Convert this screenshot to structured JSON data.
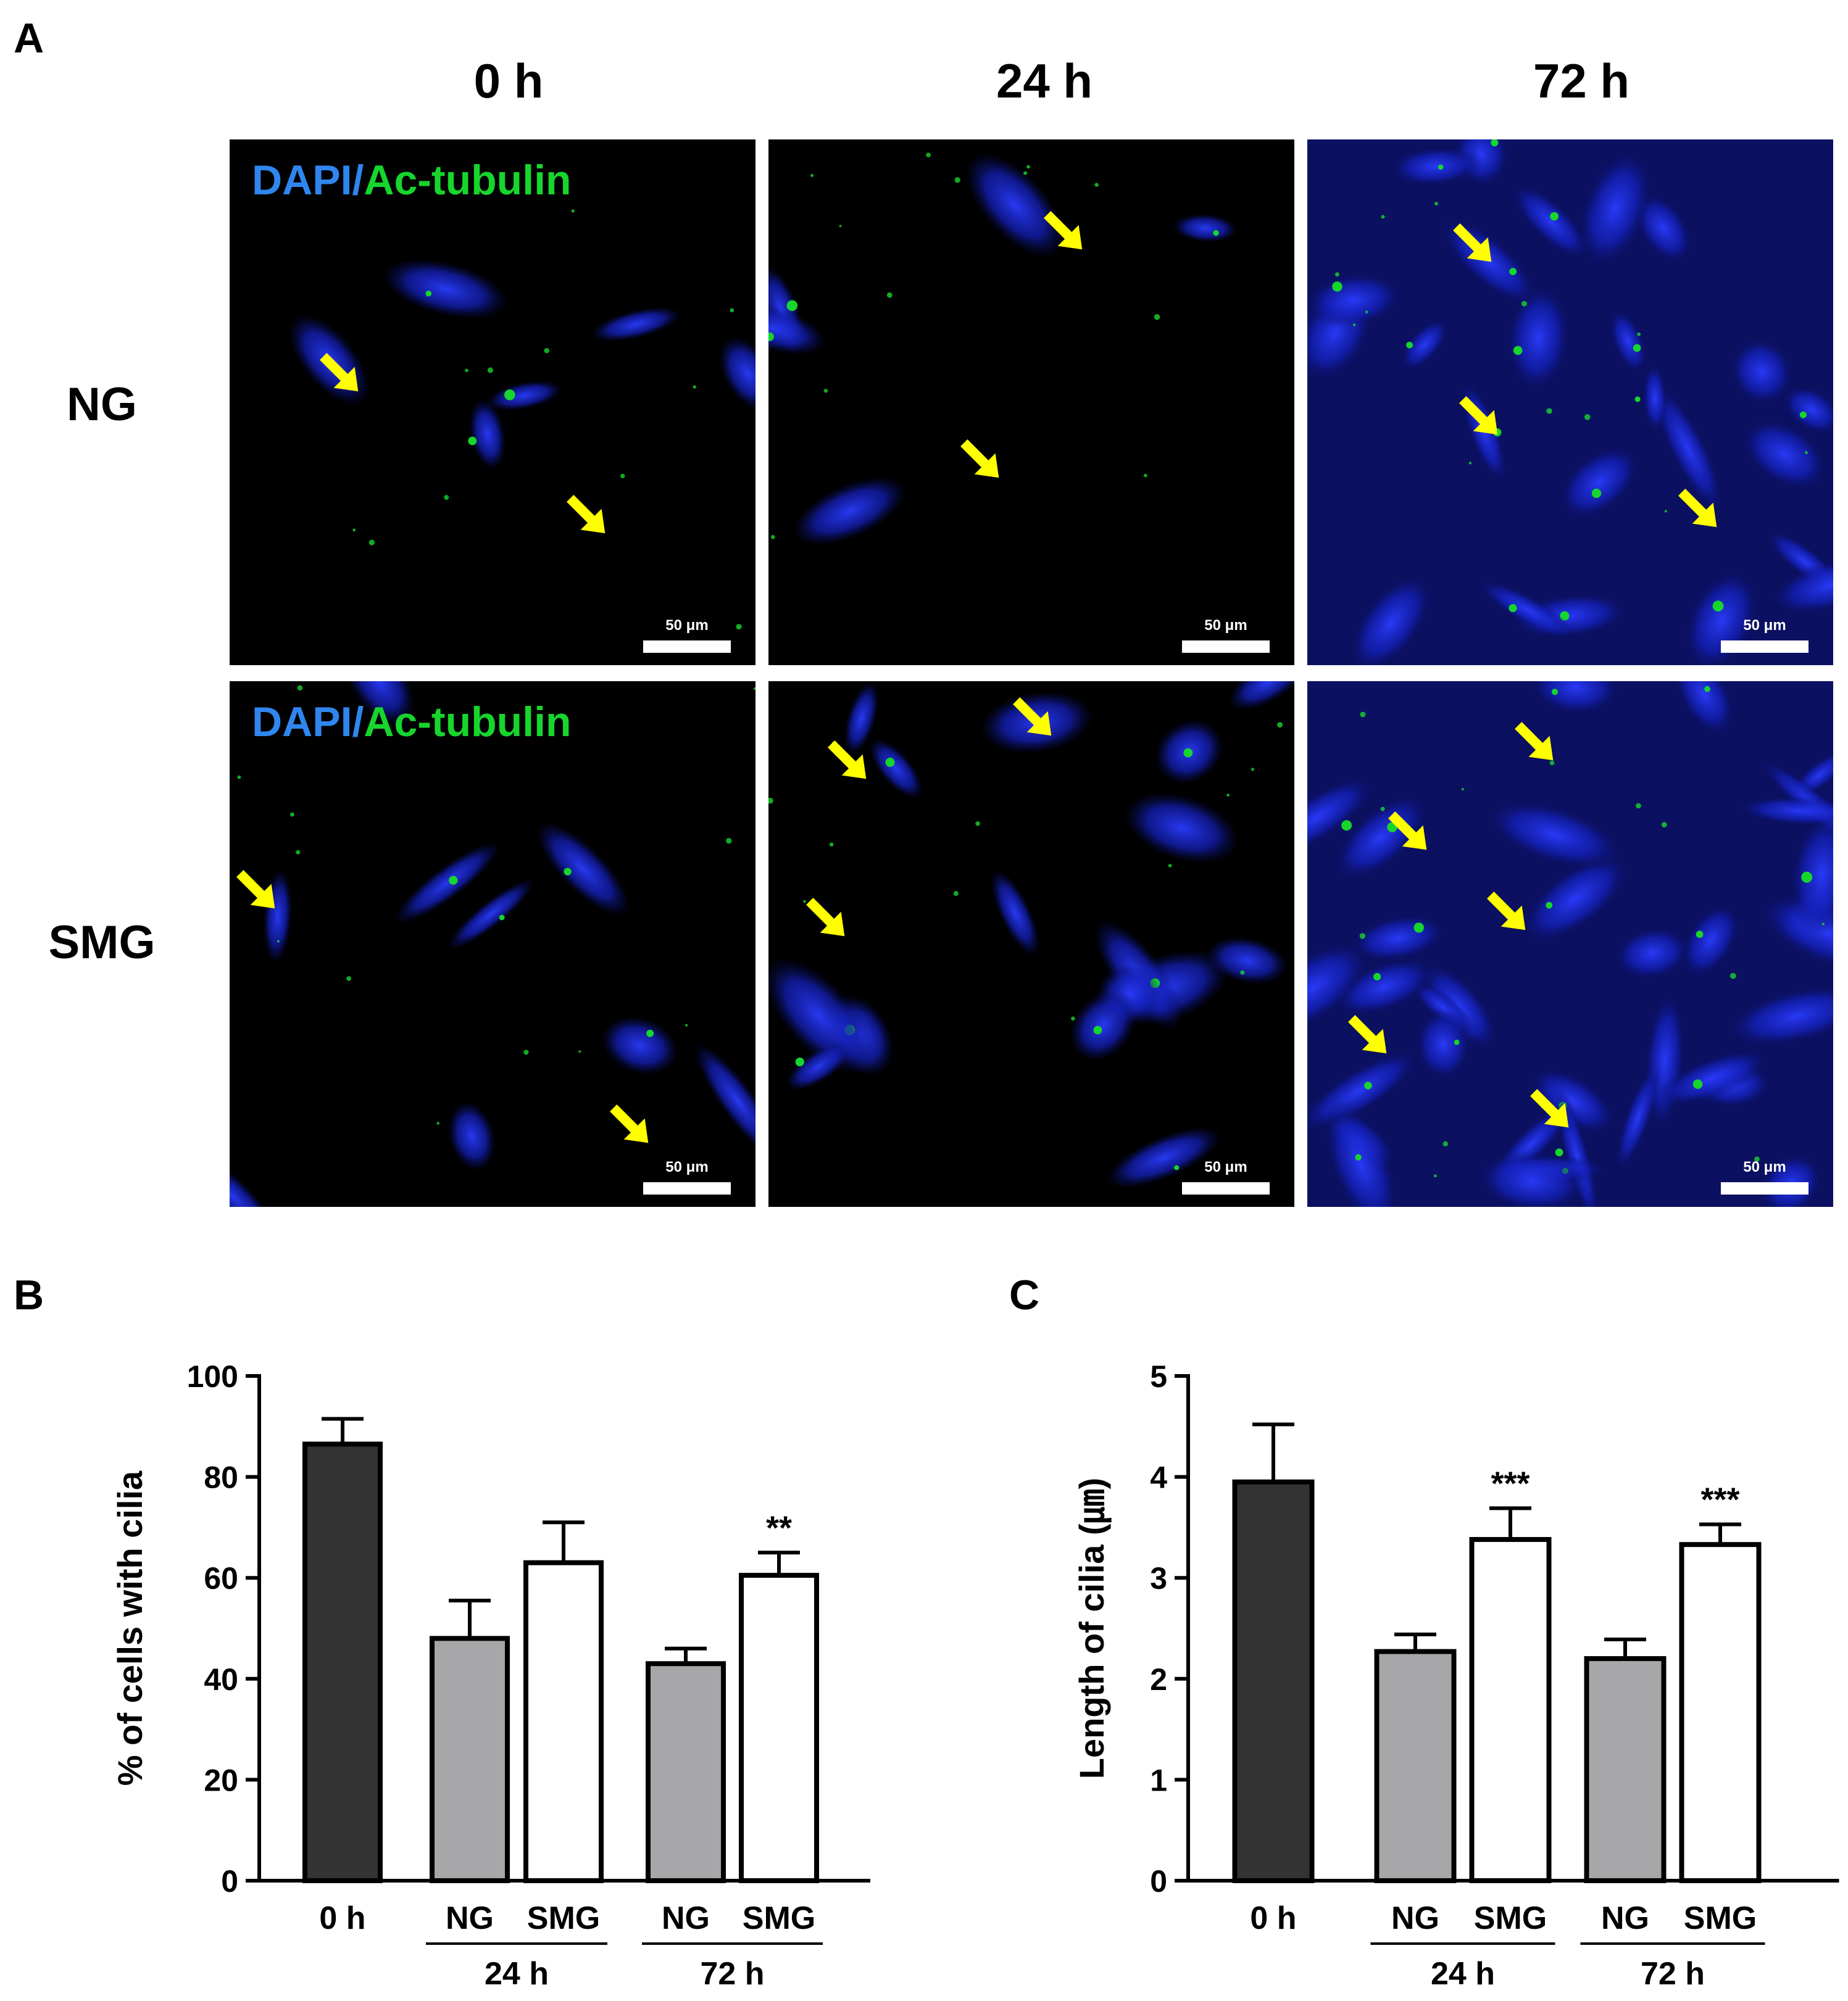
{
  "figure": {
    "panel_letters": {
      "a": "A",
      "b": "B",
      "c": "C"
    },
    "timepoints": [
      "0 h",
      "24 h",
      "72 h"
    ],
    "conditions": [
      "NG",
      "SMG"
    ],
    "stain": {
      "dapi": "DAPI",
      "separator": "/",
      "marker": "Ac-tubulin"
    },
    "scale_bar": "50 μm",
    "colors": {
      "dapi": "#2f86ee",
      "ac_tubulin": "#16d62d",
      "arrow": "#ffff00"
    }
  },
  "chart_data": [
    {
      "type": "bar",
      "panel": "B",
      "ylabel": "% of cells with cilia",
      "ylim": [
        0,
        100
      ],
      "yticks": [
        0,
        20,
        40,
        60,
        80,
        100
      ],
      "categories": [
        "0 h",
        "NG",
        "SMG",
        "NG",
        "SMG"
      ],
      "groups": [
        {
          "label": "24 h",
          "members": [
            1,
            2
          ]
        },
        {
          "label": "72 h",
          "members": [
            3,
            4
          ]
        }
      ],
      "values": [
        86.5,
        48,
        63,
        43,
        60.5
      ],
      "errors": [
        5,
        7.5,
        8,
        3,
        4.5
      ],
      "fills": [
        "#333333",
        "#a7a7aa",
        "#ffffff",
        "#a7a7aa",
        "#ffffff"
      ],
      "annotations": [
        "",
        "",
        "",
        "",
        "**"
      ]
    },
    {
      "type": "bar",
      "panel": "C",
      "ylabel": "Length of cilia (㎛)",
      "ylim": [
        0,
        5
      ],
      "yticks": [
        0,
        1,
        2,
        3,
        4,
        5
      ],
      "categories": [
        "0 h",
        "NG",
        "SMG",
        "NG",
        "SMG"
      ],
      "groups": [
        {
          "label": "24 h",
          "members": [
            1,
            2
          ]
        },
        {
          "label": "72 h",
          "members": [
            3,
            4
          ]
        }
      ],
      "values": [
        3.95,
        2.27,
        3.38,
        2.2,
        3.33
      ],
      "errors": [
        0.57,
        0.17,
        0.31,
        0.19,
        0.2
      ],
      "fills": [
        "#333333",
        "#a7a7aa",
        "#ffffff",
        "#a7a7aa",
        "#ffffff"
      ],
      "annotations": [
        "",
        "",
        "***",
        "",
        "***"
      ]
    }
  ]
}
